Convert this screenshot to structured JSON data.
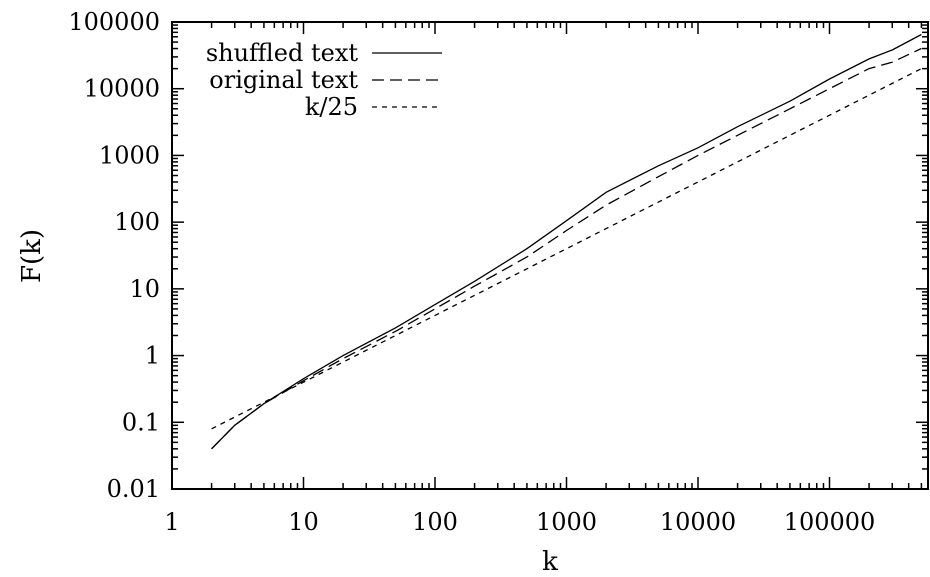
{
  "chart_data": {
    "type": "line",
    "title": "",
    "xlabel": "k",
    "ylabel": "F(k)",
    "xscale": "log",
    "yscale": "log",
    "xlim": [
      1,
      500000
    ],
    "ylim": [
      0.01,
      100000
    ],
    "grid": false,
    "legend_position": "top-left",
    "x_ticks": [
      {
        "value": 1,
        "label": "1"
      },
      {
        "value": 10,
        "label": "10"
      },
      {
        "value": 100,
        "label": "100"
      },
      {
        "value": 1000,
        "label": "1000"
      },
      {
        "value": 10000,
        "label": "10000"
      },
      {
        "value": 100000,
        "label": "100000"
      }
    ],
    "y_ticks": [
      {
        "value": 0.01,
        "label": "0.01"
      },
      {
        "value": 0.1,
        "label": "0.1"
      },
      {
        "value": 1,
        "label": "1"
      },
      {
        "value": 10,
        "label": "10"
      },
      {
        "value": 100,
        "label": "100"
      },
      {
        "value": 1000,
        "label": "1000"
      },
      {
        "value": 10000,
        "label": "10000"
      },
      {
        "value": 100000,
        "label": "100000"
      }
    ],
    "series": [
      {
        "name": "shuffled text",
        "style": "solid",
        "x": [
          2,
          3,
          5,
          10,
          20,
          50,
          100,
          200,
          500,
          1000,
          2000,
          5000,
          10000,
          20000,
          50000,
          100000,
          200000,
          300000,
          500000
        ],
        "y": [
          0.04,
          0.09,
          0.19,
          0.45,
          1.0,
          2.6,
          5.8,
          13,
          40,
          105,
          280,
          700,
          1300,
          2700,
          6500,
          14000,
          28000,
          38000,
          65000
        ]
      },
      {
        "name": "original text",
        "style": "dashed",
        "x": [
          2,
          3,
          5,
          10,
          20,
          50,
          100,
          200,
          500,
          1000,
          2000,
          5000,
          10000,
          20000,
          50000,
          100000,
          200000,
          300000,
          500000
        ],
        "y": [
          0.04,
          0.09,
          0.19,
          0.42,
          0.9,
          2.3,
          5.0,
          11,
          30,
          75,
          180,
          480,
          1000,
          2000,
          5000,
          10000,
          20000,
          25000,
          40000
        ]
      },
      {
        "name": "k/25",
        "style": "dotted",
        "x": [
          2,
          500000
        ],
        "y": [
          0.08,
          20000
        ]
      }
    ]
  }
}
